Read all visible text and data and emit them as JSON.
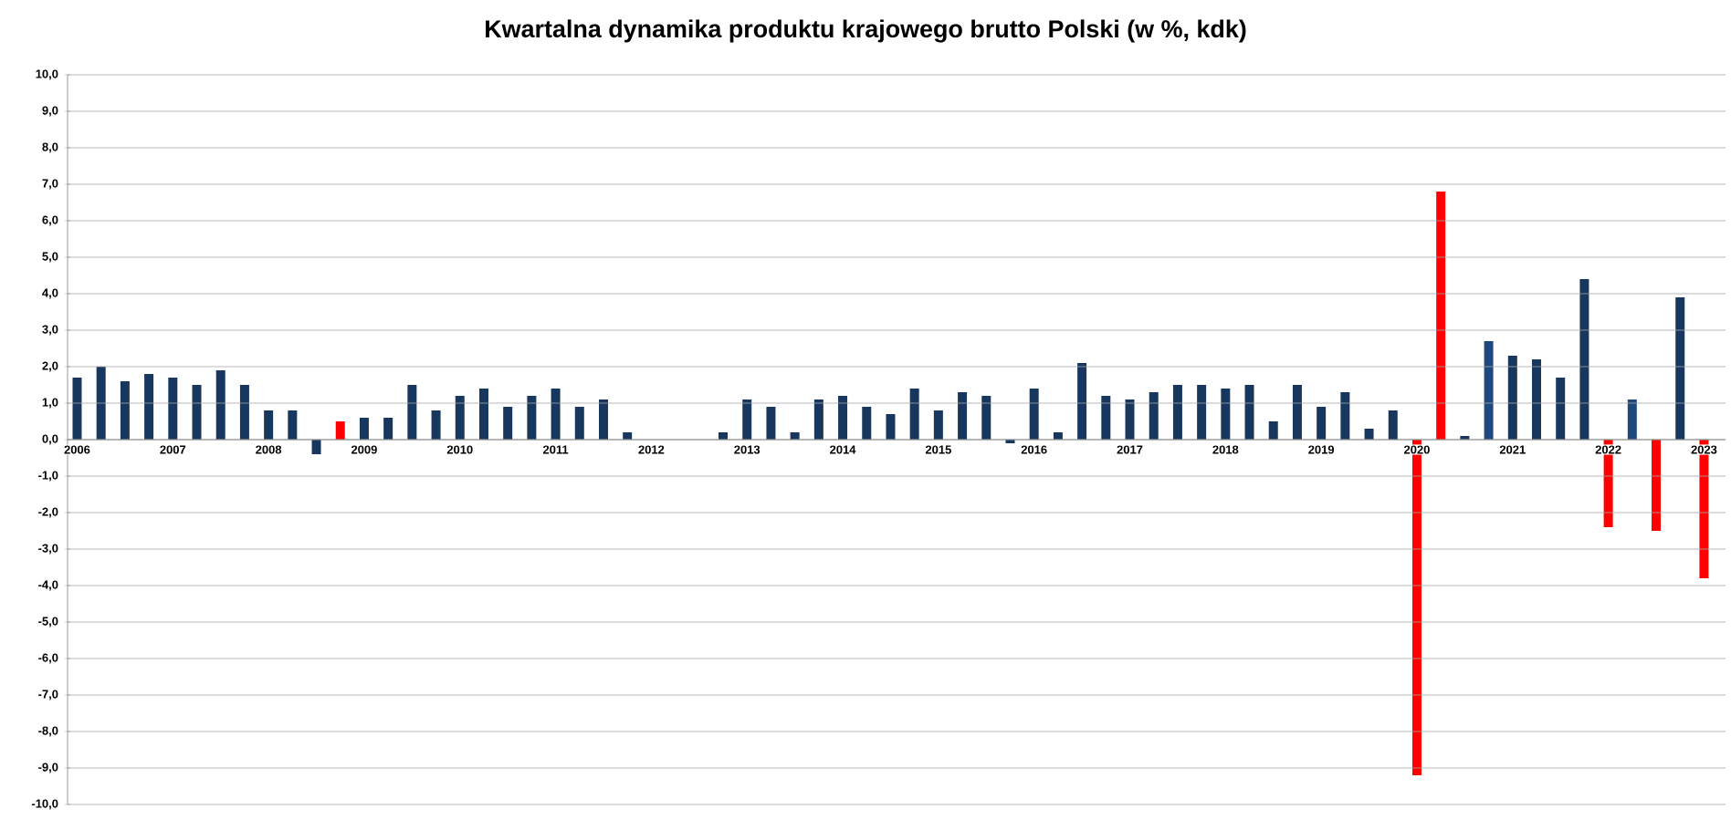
{
  "chart_data": {
    "type": "bar",
    "title": "Kwartalna dynamika produktu krajowego brutto Polski (w %, kdk)",
    "categories": [
      "2006",
      null,
      null,
      null,
      "2007",
      null,
      null,
      null,
      "2008",
      null,
      null,
      null,
      "2009",
      null,
      null,
      null,
      "2010",
      null,
      null,
      null,
      "2011",
      null,
      null,
      null,
      "2012",
      null,
      null,
      null,
      "2013",
      null,
      null,
      null,
      "2014",
      null,
      null,
      null,
      "2015",
      null,
      null,
      null,
      "2016",
      null,
      null,
      null,
      "2017",
      null,
      null,
      null,
      "2018",
      null,
      null,
      null,
      "2019",
      null,
      null,
      null,
      "2020",
      null,
      null,
      null,
      "2021",
      null,
      null,
      null,
      "2022",
      null,
      null,
      null,
      "2023"
    ],
    "values": [
      1.7,
      2.0,
      1.6,
      1.8,
      1.7,
      1.5,
      1.9,
      1.5,
      0.8,
      0.8,
      -0.4,
      0.5,
      0.6,
      0.6,
      1.5,
      0.8,
      1.2,
      1.4,
      0.9,
      1.2,
      1.4,
      0.9,
      1.1,
      0.2,
      null,
      null,
      null,
      0.2,
      1.1,
      0.9,
      0.2,
      1.1,
      1.2,
      0.9,
      0.7,
      1.4,
      0.8,
      1.3,
      1.2,
      -0.1,
      1.4,
      0.2,
      2.1,
      1.2,
      1.1,
      1.3,
      1.5,
      1.5,
      1.4,
      1.5,
      0.5,
      1.5,
      0.9,
      1.3,
      0.3,
      0.8,
      -9.2,
      6.8,
      0.1,
      2.7,
      2.3,
      2.2,
      1.7,
      4.4,
      -2.4,
      1.1,
      -2.5,
      3.9,
      -3.8
    ],
    "colors": [
      "#17375e",
      "#17375e",
      "#17375e",
      "#17375e",
      "#17375e",
      "#17375e",
      "#17375e",
      "#17375e",
      "#17375e",
      "#17375e",
      "#17375e",
      "#ff0000",
      "#17375e",
      "#17375e",
      "#17375e",
      "#17375e",
      "#17375e",
      "#17375e",
      "#17375e",
      "#17375e",
      "#17375e",
      "#17375e",
      "#17375e",
      "#17375e",
      "#17375e",
      "#17375e",
      "#17375e",
      "#17375e",
      "#17375e",
      "#17375e",
      "#17375e",
      "#17375e",
      "#17375e",
      "#17375e",
      "#17375e",
      "#17375e",
      "#17375e",
      "#17375e",
      "#17375e",
      "#17375e",
      "#17375e",
      "#17375e",
      "#17375e",
      "#17375e",
      "#17375e",
      "#17375e",
      "#17375e",
      "#17375e",
      "#17375e",
      "#17375e",
      "#17375e",
      "#17375e",
      "#17375e",
      "#17375e",
      "#17375e",
      "#17375e",
      "#ff0000",
      "#ff0000",
      "#17375e",
      "#1f497d",
      "#17375e",
      "#17375e",
      "#17375e",
      "#17375e",
      "#ff0000",
      "#1f497d",
      "#ff0000",
      "#17375e",
      "#ff0000"
    ],
    "ylim": [
      -10,
      10
    ],
    "yticks": [
      {
        "value": -10,
        "label": "-10,0"
      },
      {
        "value": -9,
        "label": "-9,0"
      },
      {
        "value": -8,
        "label": "-8,0"
      },
      {
        "value": -7,
        "label": "-7,0"
      },
      {
        "value": -6,
        "label": "-6,0"
      },
      {
        "value": -5,
        "label": "-5,0"
      },
      {
        "value": -4,
        "label": "-4,0"
      },
      {
        "value": -3,
        "label": "-3,0"
      },
      {
        "value": -2,
        "label": "-2,0"
      },
      {
        "value": -1,
        "label": "-1,0"
      },
      {
        "value": 0,
        "label": "0,0"
      },
      {
        "value": 1,
        "label": "1,0"
      },
      {
        "value": 2,
        "label": "2,0"
      },
      {
        "value": 3,
        "label": "3,0"
      },
      {
        "value": 4,
        "label": "4,0"
      },
      {
        "value": 5,
        "label": "5,0"
      },
      {
        "value": 6,
        "label": "6,0"
      },
      {
        "value": 7,
        "label": "7,0"
      },
      {
        "value": 8,
        "label": "8,0"
      },
      {
        "value": 9,
        "label": "9,0"
      },
      {
        "value": 10,
        "label": "10,0"
      }
    ],
    "grid": "y"
  }
}
